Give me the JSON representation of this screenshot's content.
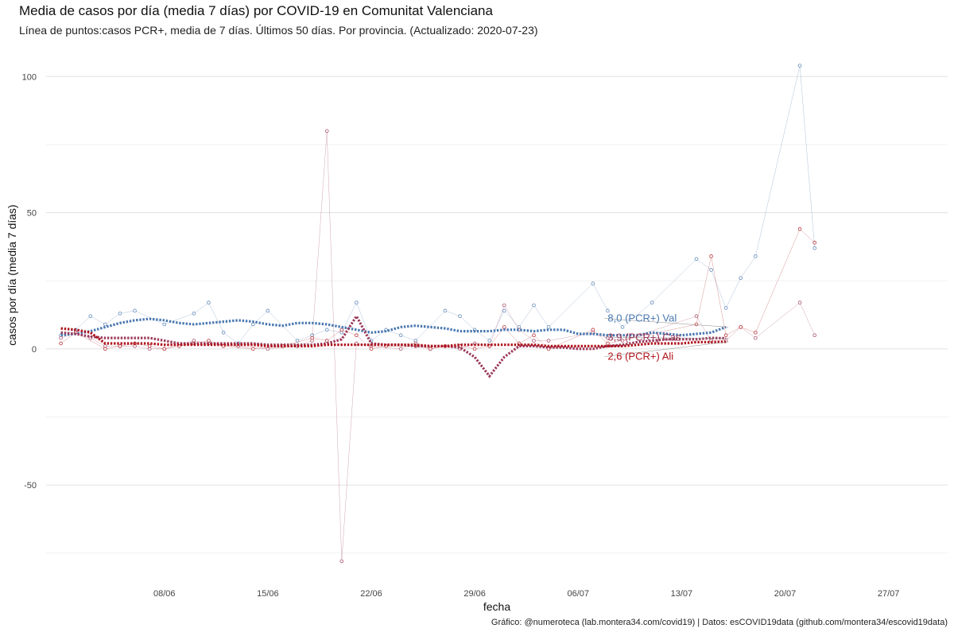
{
  "title": "Media de casos por día (media 7 días) por COVID-19 en Comunitat Valenciana",
  "subtitle": "Línea de puntos:casos PCR+, media de 7 días. Últimos 50 días. Por provincia. (Actualizado: 2020-07-23)",
  "caption": "Gráfico: @numeroteca (lab.montera34.com/covid19) | Datos: esCOVID19data (github.com/montera34/escovid19data)",
  "chart_data": {
    "type": "line",
    "xlabel": "fecha",
    "ylabel": "casos por día (media 7 días)",
    "x_domain": [
      "2020-05-31",
      "2020-07-31"
    ],
    "ylim": [
      -85,
      110
    ],
    "x_ticks": [
      {
        "date": "2020-06-08",
        "label": "08/06"
      },
      {
        "date": "2020-06-15",
        "label": "15/06"
      },
      {
        "date": "2020-06-22",
        "label": "22/06"
      },
      {
        "date": "2020-06-29",
        "label": "29/06"
      },
      {
        "date": "2020-07-06",
        "label": "06/07"
      },
      {
        "date": "2020-07-13",
        "label": "13/07"
      },
      {
        "date": "2020-07-20",
        "label": "20/07"
      },
      {
        "date": "2020-07-27",
        "label": "27/07"
      }
    ],
    "y_ticks": [
      {
        "value": -50,
        "label": "-50"
      },
      {
        "value": 0,
        "label": "0"
      },
      {
        "value": 50,
        "label": "50"
      },
      {
        "value": 100,
        "label": "100"
      }
    ],
    "grid": true,
    "series": [
      {
        "name": "Val",
        "color": "#4a78b0",
        "avg_label": "8,0 (PCR+) Val",
        "label_value": 10,
        "avg": [
          [
            "2020-06-01",
            5
          ],
          [
            "2020-06-02",
            5.5
          ],
          [
            "2020-06-03",
            6.5
          ],
          [
            "2020-06-04",
            8
          ],
          [
            "2020-06-05",
            9.5
          ],
          [
            "2020-06-06",
            10.5
          ],
          [
            "2020-06-07",
            11
          ],
          [
            "2020-06-08",
            10.5
          ],
          [
            "2020-06-09",
            9.5
          ],
          [
            "2020-06-10",
            9
          ],
          [
            "2020-06-11",
            9.5
          ],
          [
            "2020-06-12",
            10
          ],
          [
            "2020-06-13",
            10.5
          ],
          [
            "2020-06-14",
            10
          ],
          [
            "2020-06-15",
            9
          ],
          [
            "2020-06-16",
            8.5
          ],
          [
            "2020-06-17",
            9.5
          ],
          [
            "2020-06-18",
            9.5
          ],
          [
            "2020-06-19",
            9
          ],
          [
            "2020-06-20",
            8
          ],
          [
            "2020-06-21",
            7
          ],
          [
            "2020-06-22",
            6
          ],
          [
            "2020-06-23",
            6.5
          ],
          [
            "2020-06-24",
            8
          ],
          [
            "2020-06-25",
            8.5
          ],
          [
            "2020-06-26",
            8
          ],
          [
            "2020-06-27",
            7.5
          ],
          [
            "2020-06-28",
            6.5
          ],
          [
            "2020-06-29",
            6.5
          ],
          [
            "2020-06-30",
            6.5
          ],
          [
            "2020-07-01",
            7
          ],
          [
            "2020-07-02",
            7
          ],
          [
            "2020-07-03",
            6.5
          ],
          [
            "2020-07-04",
            7
          ],
          [
            "2020-07-05",
            7
          ],
          [
            "2020-07-06",
            5.5
          ],
          [
            "2020-07-07",
            5.5
          ],
          [
            "2020-07-08",
            5
          ],
          [
            "2020-07-09",
            5
          ],
          [
            "2020-07-10",
            5
          ],
          [
            "2020-07-11",
            6
          ],
          [
            "2020-07-12",
            5.5
          ],
          [
            "2020-07-13",
            5
          ],
          [
            "2020-07-14",
            5.5
          ],
          [
            "2020-07-15",
            6
          ],
          [
            "2020-07-16",
            8
          ]
        ],
        "points": [
          [
            "2020-06-01",
            5
          ],
          [
            "2020-06-02",
            7
          ],
          [
            "2020-06-03",
            12
          ],
          [
            "2020-06-04",
            9
          ],
          [
            "2020-06-05",
            13
          ],
          [
            "2020-06-06",
            14
          ],
          [
            "2020-06-08",
            9
          ],
          [
            "2020-06-10",
            13
          ],
          [
            "2020-06-11",
            17
          ],
          [
            "2020-06-12",
            6
          ],
          [
            "2020-06-13",
            2
          ],
          [
            "2020-06-14",
            9
          ],
          [
            "2020-06-15",
            14
          ],
          [
            "2020-06-17",
            3
          ],
          [
            "2020-06-18",
            5
          ],
          [
            "2020-06-19",
            7
          ],
          [
            "2020-06-20",
            6
          ],
          [
            "2020-06-21",
            17
          ],
          [
            "2020-06-22",
            3
          ],
          [
            "2020-06-23",
            7
          ],
          [
            "2020-06-24",
            5
          ],
          [
            "2020-06-25",
            3
          ],
          [
            "2020-06-27",
            14
          ],
          [
            "2020-06-28",
            12
          ],
          [
            "2020-06-29",
            7
          ],
          [
            "2020-06-30",
            3
          ],
          [
            "2020-07-01",
            14
          ],
          [
            "2020-07-02",
            8
          ],
          [
            "2020-07-03",
            16
          ],
          [
            "2020-07-04",
            8
          ],
          [
            "2020-07-07",
            24
          ],
          [
            "2020-07-08",
            14
          ],
          [
            "2020-07-09",
            8
          ],
          [
            "2020-07-11",
            17
          ],
          [
            "2020-07-14",
            33
          ],
          [
            "2020-07-15",
            29
          ],
          [
            "2020-07-16",
            15
          ],
          [
            "2020-07-17",
            26
          ],
          [
            "2020-07-18",
            34
          ],
          [
            "2020-07-21",
            104
          ],
          [
            "2020-07-22",
            37
          ]
        ]
      },
      {
        "name": "Cas",
        "color": "#9b3a5a",
        "avg_label": "3,9 (PCR+) Cas",
        "label_value": 3,
        "avg": [
          [
            "2020-06-01",
            6
          ],
          [
            "2020-06-02",
            5.5
          ],
          [
            "2020-06-03",
            4.5
          ],
          [
            "2020-06-04",
            4
          ],
          [
            "2020-06-05",
            4
          ],
          [
            "2020-06-06",
            4
          ],
          [
            "2020-06-07",
            4
          ],
          [
            "2020-06-08",
            3
          ],
          [
            "2020-06-09",
            2
          ],
          [
            "2020-06-10",
            2
          ],
          [
            "2020-06-11",
            2
          ],
          [
            "2020-06-12",
            2
          ],
          [
            "2020-06-13",
            2
          ],
          [
            "2020-06-14",
            2
          ],
          [
            "2020-06-15",
            1.5
          ],
          [
            "2020-06-16",
            1.5
          ],
          [
            "2020-06-17",
            1.5
          ],
          [
            "2020-06-18",
            1.5
          ],
          [
            "2020-06-19",
            2
          ],
          [
            "2020-06-20",
            3.5
          ],
          [
            "2020-06-21",
            12
          ],
          [
            "2020-06-22",
            2
          ],
          [
            "2020-06-23",
            1.5
          ],
          [
            "2020-06-24",
            1.5
          ],
          [
            "2020-06-25",
            1
          ],
          [
            "2020-06-26",
            1
          ],
          [
            "2020-06-27",
            1
          ],
          [
            "2020-06-28",
            0.5
          ],
          [
            "2020-06-29",
            -3
          ],
          [
            "2020-06-30",
            -10
          ],
          [
            "2020-07-01",
            -3
          ],
          [
            "2020-07-02",
            1
          ],
          [
            "2020-07-03",
            1
          ],
          [
            "2020-07-04",
            0.5
          ],
          [
            "2020-07-05",
            0.5
          ],
          [
            "2020-07-06",
            0
          ],
          [
            "2020-07-07",
            0
          ],
          [
            "2020-07-08",
            1
          ],
          [
            "2020-07-09",
            1.5
          ],
          [
            "2020-07-10",
            2.5
          ],
          [
            "2020-07-11",
            3
          ],
          [
            "2020-07-12",
            3.5
          ],
          [
            "2020-07-13",
            3.5
          ],
          [
            "2020-07-14",
            3.5
          ],
          [
            "2020-07-15",
            4
          ],
          [
            "2020-07-16",
            3.9
          ]
        ],
        "points": [
          [
            "2020-06-01",
            4
          ],
          [
            "2020-06-02",
            6
          ],
          [
            "2020-06-03",
            4
          ],
          [
            "2020-06-04",
            1
          ],
          [
            "2020-06-05",
            1
          ],
          [
            "2020-06-06",
            1
          ],
          [
            "2020-06-07",
            0
          ],
          [
            "2020-06-08",
            0
          ],
          [
            "2020-06-10",
            3
          ],
          [
            "2020-06-11",
            2
          ],
          [
            "2020-06-13",
            1
          ],
          [
            "2020-06-15",
            0
          ],
          [
            "2020-06-17",
            1
          ],
          [
            "2020-06-18",
            3
          ],
          [
            "2020-06-19",
            80
          ],
          [
            "2020-06-20",
            -78
          ],
          [
            "2020-06-21",
            2
          ],
          [
            "2020-06-22",
            1
          ],
          [
            "2020-06-24",
            0
          ],
          [
            "2020-06-25",
            2
          ],
          [
            "2020-06-26",
            0
          ],
          [
            "2020-06-27",
            1
          ],
          [
            "2020-06-28",
            0
          ],
          [
            "2020-06-29",
            2
          ],
          [
            "2020-06-30",
            1
          ],
          [
            "2020-07-01",
            16
          ],
          [
            "2020-07-02",
            7
          ],
          [
            "2020-07-03",
            3
          ],
          [
            "2020-07-04",
            3
          ],
          [
            "2020-07-07",
            6
          ],
          [
            "2020-07-08",
            4
          ],
          [
            "2020-07-09",
            3
          ],
          [
            "2020-07-14",
            12
          ],
          [
            "2020-07-15",
            3
          ],
          [
            "2020-07-16",
            3
          ],
          [
            "2020-07-17",
            8
          ],
          [
            "2020-07-18",
            4
          ],
          [
            "2020-07-21",
            17
          ],
          [
            "2020-07-22",
            5
          ]
        ]
      },
      {
        "name": "Ali",
        "color": "#b0131b",
        "avg_label": "2,6 (PCR+) Ali",
        "label_value": -4,
        "avg": [
          [
            "2020-06-01",
            7.5
          ],
          [
            "2020-06-02",
            7
          ],
          [
            "2020-06-03",
            6
          ],
          [
            "2020-06-04",
            2
          ],
          [
            "2020-06-05",
            2
          ],
          [
            "2020-06-06",
            2
          ],
          [
            "2020-06-07",
            2
          ],
          [
            "2020-06-08",
            1.5
          ],
          [
            "2020-06-09",
            1.5
          ],
          [
            "2020-06-10",
            1.5
          ],
          [
            "2020-06-11",
            1.5
          ],
          [
            "2020-06-12",
            1.5
          ],
          [
            "2020-06-13",
            1.5
          ],
          [
            "2020-06-14",
            1.5
          ],
          [
            "2020-06-15",
            1
          ],
          [
            "2020-06-16",
            1
          ],
          [
            "2020-06-17",
            1
          ],
          [
            "2020-06-18",
            1
          ],
          [
            "2020-06-19",
            1.5
          ],
          [
            "2020-06-20",
            1.5
          ],
          [
            "2020-06-21",
            1.5
          ],
          [
            "2020-06-22",
            1.5
          ],
          [
            "2020-06-23",
            1.5
          ],
          [
            "2020-06-24",
            1.5
          ],
          [
            "2020-06-25",
            1.5
          ],
          [
            "2020-06-26",
            1
          ],
          [
            "2020-06-27",
            1
          ],
          [
            "2020-06-28",
            1.5
          ],
          [
            "2020-06-29",
            1.5
          ],
          [
            "2020-06-30",
            1.5
          ],
          [
            "2020-07-01",
            1.5
          ],
          [
            "2020-07-02",
            1.5
          ],
          [
            "2020-07-03",
            1.5
          ],
          [
            "2020-07-04",
            1
          ],
          [
            "2020-07-05",
            1
          ],
          [
            "2020-07-06",
            1
          ],
          [
            "2020-07-07",
            1
          ],
          [
            "2020-07-08",
            1
          ],
          [
            "2020-07-09",
            1
          ],
          [
            "2020-07-10",
            1.5
          ],
          [
            "2020-07-11",
            2
          ],
          [
            "2020-07-12",
            2
          ],
          [
            "2020-07-13",
            2
          ],
          [
            "2020-07-14",
            2.5
          ],
          [
            "2020-07-15",
            2.5
          ],
          [
            "2020-07-16",
            2.6
          ]
        ],
        "points": [
          [
            "2020-06-01",
            2
          ],
          [
            "2020-06-02",
            6
          ],
          [
            "2020-06-04",
            0
          ],
          [
            "2020-06-05",
            1
          ],
          [
            "2020-06-06",
            2
          ],
          [
            "2020-06-07",
            1
          ],
          [
            "2020-06-08",
            0
          ],
          [
            "2020-06-09",
            1
          ],
          [
            "2020-06-10",
            2
          ],
          [
            "2020-06-11",
            3
          ],
          [
            "2020-06-12",
            1
          ],
          [
            "2020-06-14",
            0
          ],
          [
            "2020-06-16",
            1
          ],
          [
            "2020-06-18",
            4
          ],
          [
            "2020-06-19",
            3
          ],
          [
            "2020-06-20",
            7
          ],
          [
            "2020-06-21",
            5
          ],
          [
            "2020-06-22",
            0
          ],
          [
            "2020-06-23",
            1
          ],
          [
            "2020-06-25",
            1
          ],
          [
            "2020-06-26",
            0
          ],
          [
            "2020-06-27",
            1
          ],
          [
            "2020-06-28",
            1
          ],
          [
            "2020-06-29",
            0
          ],
          [
            "2020-06-30",
            1
          ],
          [
            "2020-07-01",
            8
          ],
          [
            "2020-07-02",
            2
          ],
          [
            "2020-07-03",
            5
          ],
          [
            "2020-07-04",
            0
          ],
          [
            "2020-07-07",
            7
          ],
          [
            "2020-07-08",
            2
          ],
          [
            "2020-07-14",
            9
          ],
          [
            "2020-07-15",
            34
          ],
          [
            "2020-07-16",
            5
          ],
          [
            "2020-07-17",
            8
          ],
          [
            "2020-07-18",
            6
          ],
          [
            "2020-07-21",
            44
          ],
          [
            "2020-07-22",
            39
          ]
        ]
      }
    ]
  }
}
